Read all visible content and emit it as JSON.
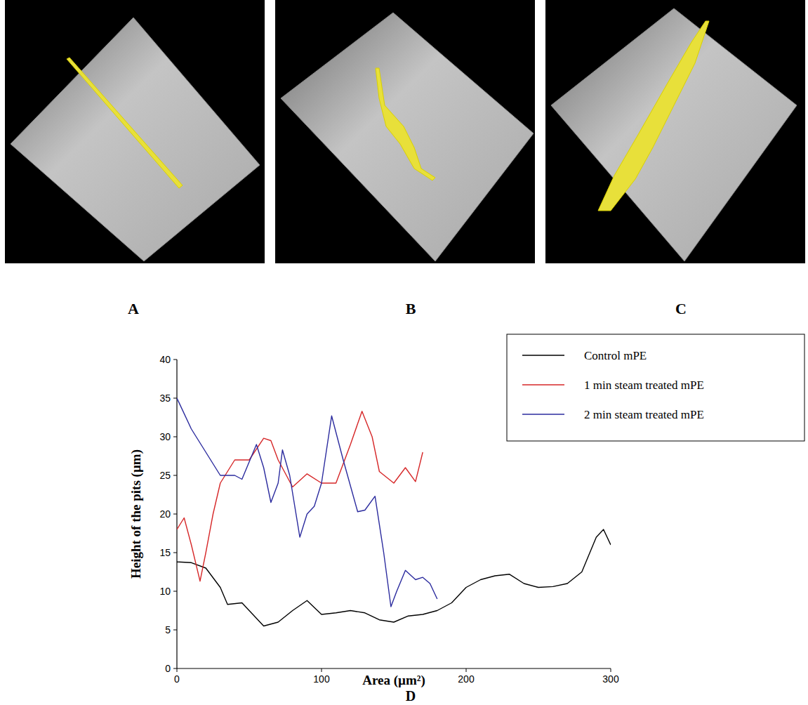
{
  "panels": [
    "A",
    "B",
    "C"
  ],
  "chart_data": {
    "type": "line",
    "panel_label": "D",
    "x_label": "Area (µm²)",
    "y_label": "Height of the pits (µm)",
    "xlim": [
      0,
      300
    ],
    "ylim": [
      0,
      40
    ],
    "xticks": [
      0,
      100,
      200,
      300
    ],
    "yticks": [
      0,
      5,
      10,
      15,
      20,
      25,
      30,
      35,
      40
    ],
    "legend": "upper right",
    "series": [
      {
        "name": "Control mPE",
        "color": "#000000",
        "x": [
          0,
          10,
          20,
          30,
          35,
          45,
          55,
          60,
          70,
          80,
          90,
          100,
          110,
          120,
          130,
          140,
          150,
          160,
          170,
          180,
          190,
          200,
          210,
          220,
          230,
          240,
          250,
          260,
          270,
          280,
          290,
          295,
          300
        ],
        "values": [
          13.8,
          13.7,
          13,
          10.5,
          8.3,
          8.5,
          6.5,
          5.5,
          6,
          7.5,
          8.8,
          7,
          7.2,
          7.5,
          7.2,
          6.3,
          6,
          6.8,
          7,
          7.5,
          8.5,
          10.5,
          11.5,
          12,
          12.2,
          11,
          10.5,
          10.6,
          11,
          12.5,
          17,
          18,
          16
        ]
      },
      {
        "name": "1 min steam treated mPE",
        "color": "#d62728",
        "x": [
          0,
          5,
          10,
          16,
          20,
          25,
          30,
          40,
          50,
          60,
          65,
          70,
          80,
          90,
          100,
          110,
          120,
          128,
          135,
          140,
          150,
          158,
          165,
          170
        ],
        "values": [
          18,
          19.5,
          16,
          11.3,
          15,
          20,
          24,
          27,
          27,
          29.8,
          29.5,
          27,
          23.5,
          25.2,
          24,
          24,
          29,
          33.3,
          30,
          25.5,
          24,
          26,
          24.2,
          28
        ]
      },
      {
        "name": "2 min steam treated mPE",
        "color": "#2b2b9e",
        "x": [
          0,
          10,
          20,
          30,
          40,
          45,
          55,
          60,
          65,
          70,
          73,
          78,
          85,
          90,
          95,
          100,
          107,
          115,
          125,
          130,
          137,
          143,
          148,
          152,
          158,
          165,
          170,
          175,
          180
        ],
        "values": [
          35,
          31,
          28,
          25,
          25,
          24.5,
          29,
          26,
          21.5,
          24,
          28.3,
          25,
          17,
          20,
          21,
          24,
          32.7,
          27,
          20.3,
          20.5,
          22.3,
          15,
          8,
          10,
          12.7,
          11.5,
          11.8,
          11,
          9
        ]
      }
    ]
  }
}
